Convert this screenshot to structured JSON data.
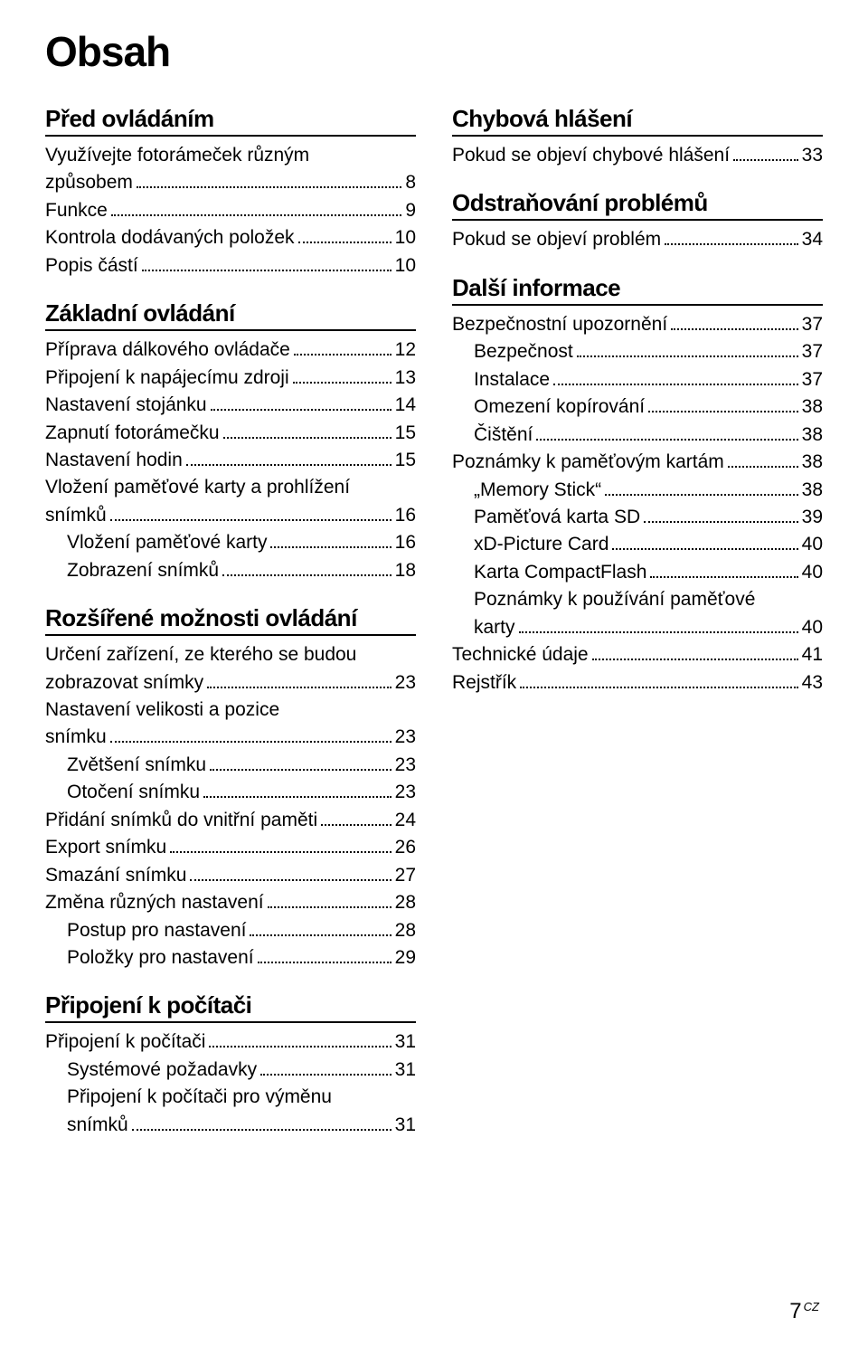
{
  "title": "Obsah",
  "footer": {
    "page": "7",
    "tag": "CZ"
  },
  "left": [
    {
      "type": "section",
      "text": "Před ovládáním",
      "first": true
    },
    {
      "type": "ml",
      "lines": [
        "Využívejte fotorámeček různým"
      ],
      "last": "způsobem",
      "page": "8"
    },
    {
      "type": "entry",
      "label": "Funkce",
      "page": "9"
    },
    {
      "type": "entry",
      "label": "Kontrola dodávaných položek",
      "page": "10"
    },
    {
      "type": "entry",
      "label": "Popis částí",
      "page": "10"
    },
    {
      "type": "section",
      "text": "Základní ovládání"
    },
    {
      "type": "entry",
      "label": "Příprava dálkového ovládače",
      "page": "12"
    },
    {
      "type": "entry",
      "label": "Připojení k napájecímu zdroji",
      "page": "13"
    },
    {
      "type": "entry",
      "label": "Nastavení stojánku",
      "page": "14"
    },
    {
      "type": "entry",
      "label": "Zapnutí fotorámečku",
      "page": "15"
    },
    {
      "type": "entry",
      "label": "Nastavení hodin",
      "page": "15"
    },
    {
      "type": "ml",
      "lines": [
        "Vložení paměťové karty a prohlížení"
      ],
      "last": "snímků",
      "page": "16"
    },
    {
      "type": "entry",
      "label": "Vložení paměťové karty",
      "page": "16",
      "indent": true
    },
    {
      "type": "entry",
      "label": "Zobrazení snímků",
      "page": "18",
      "indent": true
    },
    {
      "type": "section",
      "text": "Rozšířené možnosti ovládání"
    },
    {
      "type": "ml",
      "lines": [
        "Určení zařízení, ze kterého se budou"
      ],
      "last": "zobrazovat snímky",
      "page": "23"
    },
    {
      "type": "ml",
      "lines": [
        "Nastavení velikosti a pozice"
      ],
      "last": "snímku",
      "page": "23"
    },
    {
      "type": "entry",
      "label": "Zvětšení snímku",
      "page": "23",
      "indent": true
    },
    {
      "type": "entry",
      "label": "Otočení snímku",
      "page": "23",
      "indent": true
    },
    {
      "type": "entry",
      "label": "Přidání snímků do vnitřní paměti",
      "page": "24"
    },
    {
      "type": "entry",
      "label": "Export snímku",
      "page": "26"
    },
    {
      "type": "entry",
      "label": "Smazání snímku",
      "page": "27"
    },
    {
      "type": "entry",
      "label": "Změna různých nastavení",
      "page": "28"
    },
    {
      "type": "entry",
      "label": "Postup pro nastavení",
      "page": "28",
      "indent": true
    },
    {
      "type": "entry",
      "label": "Položky pro nastavení",
      "page": "29",
      "indent": true
    },
    {
      "type": "section",
      "text": "Připojení k počítači"
    },
    {
      "type": "entry",
      "label": "Připojení k počítači",
      "page": "31"
    },
    {
      "type": "entry",
      "label": "Systémové požadavky",
      "page": "31",
      "indent": true
    },
    {
      "type": "ml",
      "lines": [
        "Připojení k počítači pro výměnu"
      ],
      "last": "snímků",
      "page": "31",
      "indent": true
    }
  ],
  "right": [
    {
      "type": "section",
      "text": "Chybová hlášení",
      "first": true
    },
    {
      "type": "entry",
      "label": "Pokud se objeví chybové hlášení",
      "page": "33"
    },
    {
      "type": "section",
      "text": "Odstraňování problémů"
    },
    {
      "type": "entry",
      "label": "Pokud se objeví problém",
      "page": "34"
    },
    {
      "type": "section",
      "text": "Další informace"
    },
    {
      "type": "entry",
      "label": "Bezpečnostní upozornění",
      "page": "37"
    },
    {
      "type": "entry",
      "label": "Bezpečnost",
      "page": "37",
      "indent": true
    },
    {
      "type": "entry",
      "label": "Instalace",
      "page": "37",
      "indent": true
    },
    {
      "type": "entry",
      "label": "Omezení kopírování",
      "page": "38",
      "indent": true
    },
    {
      "type": "entry",
      "label": "Čištění",
      "page": "38",
      "indent": true
    },
    {
      "type": "entry",
      "label": "Poznámky k paměťovým kartám",
      "page": "38"
    },
    {
      "type": "entry",
      "label": "„Memory Stick“",
      "page": "38",
      "indent": true
    },
    {
      "type": "entry",
      "label": "Paměťová karta SD",
      "page": "39",
      "indent": true
    },
    {
      "type": "entry",
      "label": "xD-Picture Card",
      "page": "40",
      "indent": true
    },
    {
      "type": "entry",
      "label": "Karta CompactFlash",
      "page": "40",
      "indent": true
    },
    {
      "type": "ml",
      "lines": [
        "Poznámky k používání paměťové"
      ],
      "last": "karty",
      "page": "40",
      "indent": true
    },
    {
      "type": "entry",
      "label": "Technické údaje",
      "page": "41"
    },
    {
      "type": "entry",
      "label": "Rejstřík",
      "page": "43"
    }
  ]
}
